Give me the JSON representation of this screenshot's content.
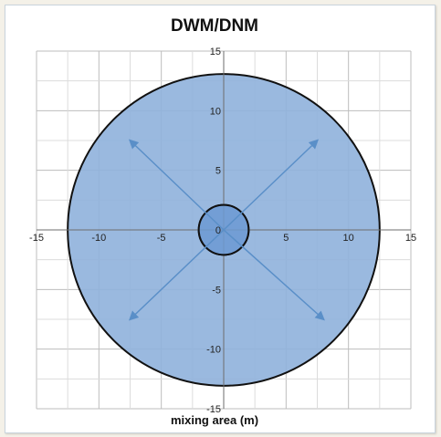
{
  "chart_data": {
    "type": "scatter",
    "title": "DWM/DNM",
    "xlabel": "mixing area (m)",
    "ylabel": "",
    "xlim": [
      -15,
      15
    ],
    "ylim": [
      -15,
      15
    ],
    "grid": true,
    "x_tick_labels": [
      "-15",
      "-10",
      "-5",
      "0",
      "5",
      "10",
      "15"
    ],
    "y_tick_labels": [
      "15",
      "10",
      "5",
      "0",
      "-5",
      "-10",
      "-15"
    ],
    "shapes": [
      {
        "name": "outer mixing zone",
        "kind": "circle",
        "center": [
          0,
          0
        ],
        "radius": 12.5
      },
      {
        "name": "inner zone",
        "kind": "circle",
        "center": [
          0,
          0
        ],
        "radius": 2
      }
    ],
    "arrows": [
      {
        "from": [
          0,
          0
        ],
        "to": [
          -7.5,
          7.5
        ]
      },
      {
        "from": [
          0,
          0
        ],
        "to": [
          7.5,
          7.5
        ]
      },
      {
        "from": [
          0,
          0
        ],
        "to": [
          -7.5,
          -7.5
        ]
      },
      {
        "from": [
          0,
          0
        ],
        "to": [
          8,
          -7.5
        ]
      }
    ],
    "colors": {
      "fill": "#8fb1dc",
      "outline": "#111111",
      "arrow": "#5a8fc8",
      "grid": "#bdbdbd"
    }
  }
}
